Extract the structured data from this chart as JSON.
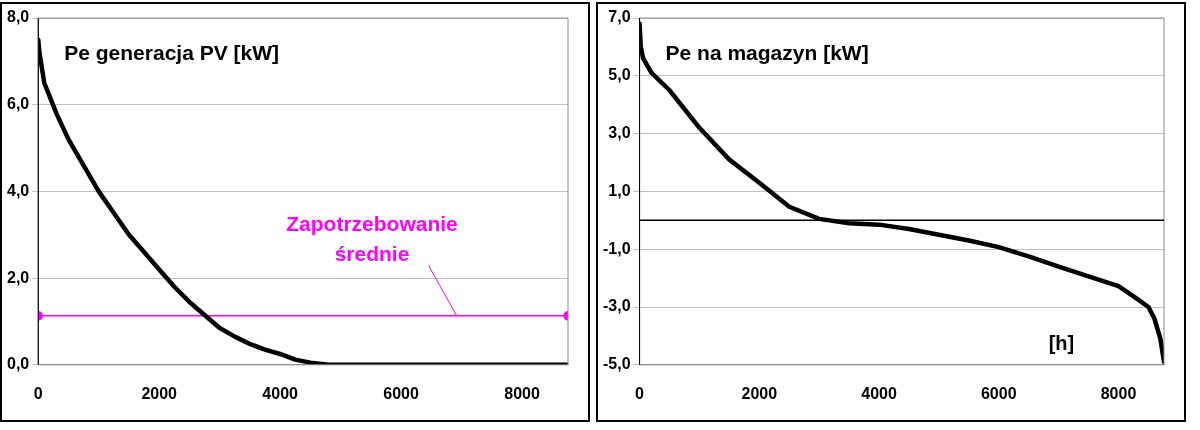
{
  "chart_data": [
    {
      "type": "line",
      "title": "Pe generacja PV [kW]",
      "xlim": [
        0,
        8760
      ],
      "xticks": [
        0,
        2000,
        4000,
        6000,
        8000
      ],
      "ylim": [
        0,
        8
      ],
      "yticks": [
        {
          "value": 0,
          "label": "0,0"
        },
        {
          "value": 2,
          "label": "2,0"
        },
        {
          "value": 4,
          "label": "4,0"
        },
        {
          "value": 6,
          "label": "6,0"
        },
        {
          "value": 8,
          "label": "8,0"
        }
      ],
      "grid": "y",
      "legend": false,
      "series": [
        {
          "color": "#000000",
          "marker": "none",
          "x": [
            0,
            20,
            100,
            300,
            500,
            750,
            1000,
            1250,
            1500,
            1750,
            2000,
            2250,
            2500,
            2750,
            3000,
            3250,
            3500,
            3750,
            4000,
            4250,
            4500,
            4800,
            6000,
            8760
          ],
          "values": [
            7.5,
            7.2,
            6.5,
            5.8,
            5.2,
            4.6,
            4.0,
            3.5,
            3.0,
            2.6,
            2.2,
            1.8,
            1.45,
            1.15,
            0.85,
            0.65,
            0.48,
            0.35,
            0.25,
            0.12,
            0.05,
            0,
            0,
            0
          ]
        },
        {
          "name": "Zapotrzebowanie średnie",
          "color": "#ff00ff",
          "marker": "circle",
          "x": [
            0,
            8760
          ],
          "values": [
            1.13,
            1.13
          ]
        }
      ]
    },
    {
      "type": "line",
      "title": "Pe na magazyn [kW]",
      "xlabel": "[h]",
      "xlim": [
        0,
        8760
      ],
      "xticks": [
        0,
        2000,
        4000,
        6000,
        8000
      ],
      "ylim": [
        -5,
        7
      ],
      "yticks": [
        {
          "value": -5,
          "label": "-5,0"
        },
        {
          "value": -3,
          "label": "-3,0"
        },
        {
          "value": -1,
          "label": "-1,0"
        },
        {
          "value": 1,
          "label": "1,0"
        },
        {
          "value": 3,
          "label": "3,0"
        },
        {
          "value": 5,
          "label": "5,0"
        },
        {
          "value": 7,
          "label": "7,0"
        }
      ],
      "grid": "y",
      "legend": false,
      "ref_lines": [
        {
          "axis": "y",
          "value": 0,
          "color": "#000000"
        }
      ],
      "series": [
        {
          "color": "#000000",
          "marker": "none",
          "x": [
            0,
            20,
            60,
            200,
            500,
            1000,
            1500,
            2000,
            2500,
            3000,
            3500,
            4000,
            4500,
            5000,
            5500,
            6000,
            6500,
            7000,
            7500,
            8000,
            8300,
            8500,
            8600,
            8700,
            8760
          ],
          "values": [
            6.8,
            6.0,
            5.6,
            5.1,
            4.5,
            3.2,
            2.1,
            1.3,
            0.47,
            0.05,
            -0.1,
            -0.15,
            -0.3,
            -0.5,
            -0.7,
            -0.93,
            -1.25,
            -1.6,
            -1.94,
            -2.28,
            -2.7,
            -3.0,
            -3.4,
            -4.1,
            -4.9
          ]
        }
      ]
    }
  ]
}
